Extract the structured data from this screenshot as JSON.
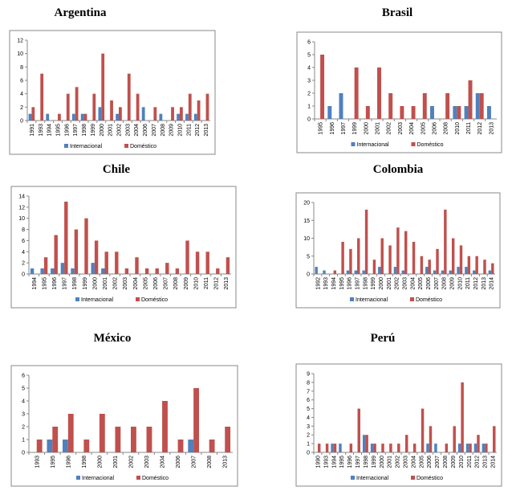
{
  "chart_data": [
    {
      "type": "bar",
      "title": "Argentina",
      "categories": [
        "1991",
        "1993",
        "1994",
        "1995",
        "1996",
        "1997",
        "1998",
        "1999",
        "2000",
        "2001",
        "2002",
        "2003",
        "2004",
        "2006",
        "2007",
        "2008",
        "2009",
        "2010",
        "2011",
        "2012",
        "2013"
      ],
      "series": [
        {
          "name": "Internacional",
          "color": "#4f81bd",
          "values": [
            1,
            0,
            1,
            0,
            0,
            1,
            1,
            0,
            2,
            0,
            1,
            0,
            0,
            2,
            0,
            1,
            0,
            1,
            1,
            1,
            0
          ]
        },
        {
          "name": "Doméstico",
          "color": "#c0504d",
          "values": [
            2,
            7,
            0,
            1,
            4,
            5,
            1,
            4,
            10,
            3,
            2,
            7,
            4,
            0,
            2,
            0,
            2,
            2,
            4,
            3,
            4
          ]
        }
      ],
      "ylim": [
        0,
        12
      ],
      "yticks": [
        0,
        2,
        4,
        6,
        8,
        10,
        12
      ]
    },
    {
      "type": "bar",
      "title": "Brasil",
      "categories": [
        "1995",
        "1996",
        "1997",
        "1999",
        "2000",
        "2001",
        "2002",
        "2003",
        "2004",
        "2005",
        "2006",
        "2008",
        "2010",
        "2011",
        "2012",
        "2013"
      ],
      "series": [
        {
          "name": "Internacional",
          "color": "#4f81bd",
          "values": [
            0,
            1,
            2,
            0,
            0,
            0,
            0,
            0,
            0,
            0,
            1,
            0,
            1,
            1,
            2,
            1
          ]
        },
        {
          "name": "Doméstico",
          "color": "#c0504d",
          "values": [
            5,
            0,
            0,
            4,
            1,
            4,
            2,
            1,
            1,
            2,
            0,
            2,
            1,
            3,
            2,
            0
          ]
        }
      ],
      "ylim": [
        0,
        6
      ],
      "yticks": [
        0,
        1,
        2,
        3,
        4,
        5,
        6
      ]
    },
    {
      "type": "bar",
      "title": "Chile",
      "categories": [
        "1994",
        "1995",
        "1996",
        "1997",
        "1998",
        "1999",
        "2000",
        "2001",
        "2002",
        "2003",
        "2004",
        "2005",
        "2006",
        "2007",
        "2008",
        "2009",
        "2010",
        "2011",
        "2012",
        "2013"
      ],
      "series": [
        {
          "name": "Internacional",
          "color": "#4f81bd",
          "values": [
            1,
            1,
            1,
            2,
            1,
            0,
            2,
            1,
            0,
            0,
            0,
            0,
            0,
            0,
            0,
            0,
            0,
            0,
            0,
            0
          ]
        },
        {
          "name": "Doméstico",
          "color": "#c0504d",
          "values": [
            0,
            3,
            7,
            13,
            8,
            10,
            6,
            4,
            4,
            1,
            3,
            1,
            1,
            2,
            1,
            6,
            4,
            4,
            1,
            3
          ]
        }
      ],
      "ylim": [
        0,
        14
      ],
      "yticks": [
        0,
        2,
        4,
        6,
        8,
        10,
        12,
        14
      ]
    },
    {
      "type": "bar",
      "title": "Colombia",
      "categories": [
        "1992",
        "1993",
        "1994",
        "1995",
        "1996",
        "1997",
        "1998",
        "1999",
        "2000",
        "2001",
        "2002",
        "2003",
        "2004",
        "2005",
        "2006",
        "2007",
        "2008",
        "2009",
        "2010",
        "2011",
        "2012",
        "2013",
        "2014"
      ],
      "series": [
        {
          "name": "Internacional",
          "color": "#4f81bd",
          "values": [
            2,
            1,
            0,
            0,
            1,
            1,
            1,
            0,
            2,
            0,
            2,
            1,
            0,
            0,
            2,
            1,
            1,
            1,
            2,
            2,
            1,
            0,
            1
          ]
        },
        {
          "name": "Doméstico",
          "color": "#c0504d",
          "values": [
            0,
            0,
            1,
            9,
            7,
            10,
            18,
            4,
            10,
            8,
            13,
            12,
            9,
            5,
            4,
            7,
            18,
            10,
            8,
            5,
            5,
            4,
            3
          ]
        }
      ],
      "ylim": [
        0,
        20
      ],
      "yticks": [
        0,
        5,
        10,
        15,
        20
      ]
    },
    {
      "type": "bar",
      "title": "México",
      "categories": [
        "1993",
        "1995",
        "1996",
        "1998",
        "2000",
        "2001",
        "2002",
        "2003",
        "2004",
        "2006",
        "2007",
        "2008",
        "2013"
      ],
      "series": [
        {
          "name": "Internacional",
          "color": "#4f81bd",
          "values": [
            0,
            1,
            1,
            0,
            0,
            0,
            0,
            0,
            0,
            0,
            1,
            0,
            0
          ]
        },
        {
          "name": "Doméstico",
          "color": "#c0504d",
          "values": [
            1,
            2,
            3,
            1,
            3,
            2,
            2,
            2,
            4,
            1,
            5,
            1,
            2
          ]
        }
      ],
      "ylim": [
        0,
        6
      ],
      "yticks": [
        0,
        1,
        2,
        3,
        4,
        5,
        6
      ]
    },
    {
      "type": "bar",
      "title": "Perú",
      "categories": [
        "1990",
        "1993",
        "1994",
        "1995",
        "1996",
        "1997",
        "1998",
        "1999",
        "2000",
        "2001",
        "2002",
        "2003",
        "2004",
        "2005",
        "2006",
        "2007",
        "2008",
        "2009",
        "2010",
        "2011",
        "2012",
        "2013",
        "2014"
      ],
      "series": [
        {
          "name": "Internacional",
          "color": "#4f81bd",
          "values": [
            0,
            0,
            1,
            1,
            0,
            0,
            2,
            1,
            0,
            0,
            0,
            0,
            0,
            0,
            1,
            1,
            0,
            0,
            1,
            1,
            1,
            1,
            0
          ]
        },
        {
          "name": "Doméstico",
          "color": "#c0504d",
          "values": [
            1,
            1,
            1,
            0,
            1,
            5,
            2,
            1,
            1,
            1,
            1,
            2,
            1,
            5,
            3,
            0,
            1,
            3,
            8,
            1,
            2,
            1,
            3
          ]
        }
      ],
      "ylim": [
        0,
        9
      ],
      "yticks": [
        0,
        1,
        2,
        3,
        4,
        5,
        6,
        7,
        8,
        9
      ]
    }
  ]
}
